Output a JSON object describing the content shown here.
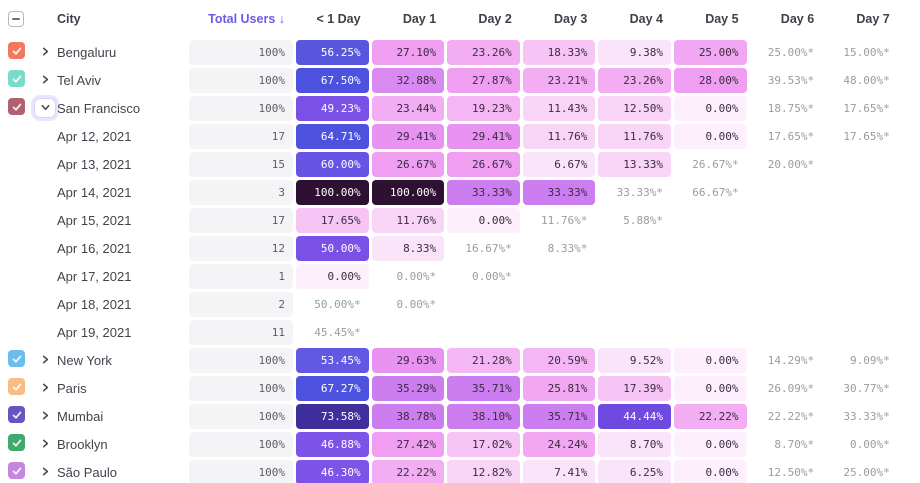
{
  "table": {
    "select_all_state": "indeterminate",
    "columns": [
      {
        "label": "City",
        "type": "city"
      },
      {
        "label": "Total Users ↓",
        "type": "total",
        "sorted": true
      },
      {
        "label": "< 1 Day",
        "type": "day"
      },
      {
        "label": "Day 1",
        "type": "day"
      },
      {
        "label": "Day 2",
        "type": "day"
      },
      {
        "label": "Day 3",
        "type": "day"
      },
      {
        "label": "Day 4",
        "type": "day"
      },
      {
        "label": "Day 5",
        "type": "day"
      },
      {
        "label": "Day 6",
        "type": "day"
      },
      {
        "label": "Day 7",
        "type": "day"
      }
    ],
    "colors": {
      "sorted_header": "#6a5be8",
      "header_text": "#3f3f49",
      "label_text": "#43434d",
      "starred_text": "#9b9ba3",
      "cell_dark_text": "#3c2b41",
      "cell_light_text": "#ffffff",
      "total_pill_bg": "#f4f4f6",
      "chevron_color": "#47474f"
    },
    "heatmap_scale": [
      {
        "min": 99,
        "bg": "#2e1033",
        "fg": "light"
      },
      {
        "min": 70,
        "bg": "#3e2f9d",
        "fg": "light"
      },
      {
        "min": 63,
        "bg": "#4c51de",
        "fg": "light"
      },
      {
        "min": 58,
        "bg": "#6753e4",
        "fg": "light"
      },
      {
        "min": 55,
        "bg": "#5856dd",
        "fg": "light"
      },
      {
        "min": 52,
        "bg": "#6158e3",
        "fg": "light"
      },
      {
        "min": 48,
        "bg": "#7a50e6",
        "fg": "light"
      },
      {
        "min": 45,
        "bg": "#7e53e8",
        "fg": "light"
      },
      {
        "min": 42,
        "bg": "#6f4ae0",
        "fg": "light"
      },
      {
        "min": 33,
        "bg": "#cc7df0",
        "fg": "dark"
      },
      {
        "min": 31,
        "bg": "#d98af2",
        "fg": "dark"
      },
      {
        "min": 28.5,
        "bg": "#e893f1",
        "fg": "dark"
      },
      {
        "min": 26,
        "bg": "#ef9ef2",
        "fg": "dark"
      },
      {
        "min": 23.5,
        "bg": "#f1a7f2",
        "fg": "dark"
      },
      {
        "min": 21.5,
        "bg": "#f2adf3",
        "fg": "dark"
      },
      {
        "min": 19,
        "bg": "#f4b6f4",
        "fg": "dark"
      },
      {
        "min": 16,
        "bg": "#f6c4f5",
        "fg": "dark"
      },
      {
        "min": 11,
        "bg": "#f8d4f7",
        "fg": "dark"
      },
      {
        "min": 6,
        "bg": "#fae4fa",
        "fg": "dark"
      },
      {
        "min": 0,
        "bg": "#fdf0fc",
        "fg": "dark"
      }
    ],
    "rows": [
      {
        "type": "city",
        "label": "Bengaluru",
        "checkbox_color": "#f4785f",
        "checked": true,
        "expanded": false,
        "total": "100%",
        "cells": [
          {
            "v": 56.25
          },
          {
            "v": 27.1
          },
          {
            "v": 23.26
          },
          {
            "v": 18.33
          },
          {
            "v": 9.38
          },
          {
            "v": 25.0
          },
          {
            "v": 25.0,
            "starred": true
          },
          {
            "v": 15.0,
            "starred": true
          }
        ]
      },
      {
        "type": "city",
        "label": "Tel Aviv",
        "checkbox_color": "#7adcc6",
        "checked": true,
        "expanded": false,
        "total": "100%",
        "cells": [
          {
            "v": 67.5
          },
          {
            "v": 32.88
          },
          {
            "v": 27.87
          },
          {
            "v": 23.21
          },
          {
            "v": 23.26
          },
          {
            "v": 28.0
          },
          {
            "v": 39.53,
            "starred": true
          },
          {
            "v": 48.0,
            "starred": true
          }
        ]
      },
      {
        "type": "city",
        "label": "San Francisco",
        "checkbox_color": "#b25f6e",
        "checked": true,
        "expanded": true,
        "total": "100%",
        "cells": [
          {
            "v": 49.23
          },
          {
            "v": 23.44
          },
          {
            "v": 19.23
          },
          {
            "v": 11.43
          },
          {
            "v": 12.5
          },
          {
            "v": 0.0
          },
          {
            "v": 18.75,
            "starred": true
          },
          {
            "v": 17.65,
            "starred": true
          }
        ]
      },
      {
        "type": "date",
        "label": "Apr 12, 2021",
        "total": "17",
        "cells": [
          {
            "v": 64.71
          },
          {
            "v": 29.41
          },
          {
            "v": 29.41
          },
          {
            "v": 11.76
          },
          {
            "v": 11.76
          },
          {
            "v": 0.0
          },
          {
            "v": 17.65,
            "starred": true
          },
          {
            "v": 17.65,
            "starred": true
          }
        ]
      },
      {
        "type": "date",
        "label": "Apr 13, 2021",
        "total": "15",
        "cells": [
          {
            "v": 60.0
          },
          {
            "v": 26.67
          },
          {
            "v": 26.67
          },
          {
            "v": 6.67
          },
          {
            "v": 13.33
          },
          {
            "v": 26.67,
            "starred": true
          },
          {
            "v": 20.0,
            "starred": true
          },
          null
        ]
      },
      {
        "type": "date",
        "label": "Apr 14, 2021",
        "total": "3",
        "cells": [
          {
            "v": 100.0
          },
          {
            "v": 100.0
          },
          {
            "v": 33.33
          },
          {
            "v": 33.33
          },
          {
            "v": 33.33,
            "starred": true
          },
          {
            "v": 66.67,
            "starred": true
          },
          null,
          null
        ]
      },
      {
        "type": "date",
        "label": "Apr 15, 2021",
        "total": "17",
        "cells": [
          {
            "v": 17.65
          },
          {
            "v": 11.76
          },
          {
            "v": 0.0
          },
          {
            "v": 11.76,
            "starred": true
          },
          {
            "v": 5.88,
            "starred": true
          },
          null,
          null,
          null
        ]
      },
      {
        "type": "date",
        "label": "Apr 16, 2021",
        "total": "12",
        "cells": [
          {
            "v": 50.0
          },
          {
            "v": 8.33
          },
          {
            "v": 16.67,
            "starred": true
          },
          {
            "v": 8.33,
            "starred": true
          },
          null,
          null,
          null,
          null
        ]
      },
      {
        "type": "date",
        "label": "Apr 17, 2021",
        "total": "1",
        "cells": [
          {
            "v": 0.0
          },
          {
            "v": 0.0,
            "starred": true
          },
          {
            "v": 0.0,
            "starred": true
          },
          null,
          null,
          null,
          null,
          null
        ]
      },
      {
        "type": "date",
        "label": "Apr 18, 2021",
        "total": "2",
        "cells": [
          {
            "v": 50.0,
            "starred": true
          },
          {
            "v": 0.0,
            "starred": true
          },
          null,
          null,
          null,
          null,
          null,
          null
        ]
      },
      {
        "type": "date",
        "label": "Apr 19, 2021",
        "total": "11",
        "cells": [
          {
            "v": 45.45,
            "starred": true
          },
          null,
          null,
          null,
          null,
          null,
          null,
          null
        ]
      },
      {
        "type": "city",
        "label": "New York",
        "checkbox_color": "#6cbcee",
        "checked": true,
        "expanded": false,
        "total": "100%",
        "cells": [
          {
            "v": 53.45
          },
          {
            "v": 29.63
          },
          {
            "v": 21.28
          },
          {
            "v": 20.59
          },
          {
            "v": 9.52
          },
          {
            "v": 0.0
          },
          {
            "v": 14.29,
            "starred": true
          },
          {
            "v": 9.09,
            "starred": true
          }
        ]
      },
      {
        "type": "city",
        "label": "Paris",
        "checkbox_color": "#f8bc84",
        "checked": true,
        "expanded": false,
        "total": "100%",
        "cells": [
          {
            "v": 67.27
          },
          {
            "v": 35.29
          },
          {
            "v": 35.71
          },
          {
            "v": 25.81
          },
          {
            "v": 17.39
          },
          {
            "v": 0.0
          },
          {
            "v": 26.09,
            "starred": true
          },
          {
            "v": 30.77,
            "starred": true
          }
        ]
      },
      {
        "type": "city",
        "label": "Mumbai",
        "checkbox_color": "#6456c0",
        "checked": true,
        "expanded": false,
        "total": "100%",
        "cells": [
          {
            "v": 73.58
          },
          {
            "v": 38.78
          },
          {
            "v": 38.1
          },
          {
            "v": 35.71
          },
          {
            "v": 44.44
          },
          {
            "v": 22.22
          },
          {
            "v": 22.22,
            "starred": true
          },
          {
            "v": 33.33,
            "starred": true
          }
        ]
      },
      {
        "type": "city",
        "label": "Brooklyn",
        "checkbox_color": "#41a86e",
        "checked": true,
        "expanded": false,
        "total": "100%",
        "cells": [
          {
            "v": 46.88
          },
          {
            "v": 27.42
          },
          {
            "v": 17.02
          },
          {
            "v": 24.24
          },
          {
            "v": 8.7
          },
          {
            "v": 0.0
          },
          {
            "v": 8.7,
            "starred": true
          },
          {
            "v": 0.0,
            "starred": true
          }
        ]
      },
      {
        "type": "city",
        "label": "São Paulo",
        "checkbox_color": "#c586de",
        "checked": true,
        "expanded": false,
        "total": "100%",
        "cells": [
          {
            "v": 46.3
          },
          {
            "v": 22.22
          },
          {
            "v": 12.82
          },
          {
            "v": 7.41
          },
          {
            "v": 6.25
          },
          {
            "v": 0.0
          },
          {
            "v": 12.5,
            "starred": true
          },
          {
            "v": 25.0,
            "starred": true
          }
        ]
      }
    ]
  }
}
